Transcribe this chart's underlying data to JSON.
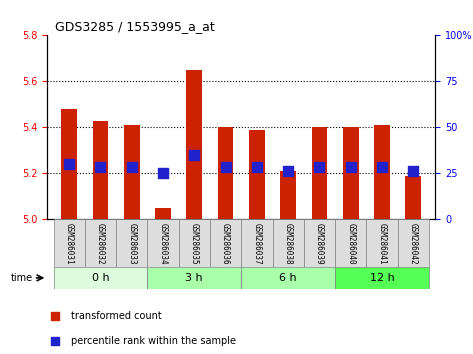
{
  "title": "GDS3285 / 1553995_a_at",
  "samples": [
    "GSM286031",
    "GSM286032",
    "GSM286033",
    "GSM286034",
    "GSM286035",
    "GSM286036",
    "GSM286037",
    "GSM286038",
    "GSM286039",
    "GSM286040",
    "GSM286041",
    "GSM286042"
  ],
  "bar_values": [
    5.48,
    5.43,
    5.41,
    5.05,
    5.65,
    5.4,
    5.39,
    5.21,
    5.4,
    5.4,
    5.41,
    5.19
  ],
  "percentile_values": [
    5.24,
    5.23,
    5.23,
    5.2,
    5.28,
    5.23,
    5.23,
    5.21,
    5.23,
    5.23,
    5.23,
    5.21
  ],
  "bar_color": "#cc2200",
  "dot_color": "#2222cc",
  "ylim_left": [
    5.0,
    5.8
  ],
  "ylim_right": [
    0,
    100
  ],
  "yticks_left": [
    5.0,
    5.2,
    5.4,
    5.6,
    5.8
  ],
  "yticks_right": [
    0,
    25,
    50,
    75,
    100
  ],
  "ytick_right_labels": [
    "0",
    "25",
    "50",
    "75",
    "100%"
  ],
  "bar_width": 0.5,
  "dot_size": 60,
  "time_label": "time",
  "legend_items": [
    {
      "label": "transformed count",
      "color": "#cc2200"
    },
    {
      "label": "percentile rank within the sample",
      "color": "#2222cc"
    }
  ],
  "group_bg_colors": [
    "#ddfcdd",
    "#aaffaa",
    "#aaffaa",
    "#55ff55"
  ],
  "tick_label_bg": "#dddddd",
  "groups": [
    {
      "label": "0 h",
      "start": 0,
      "end": 2
    },
    {
      "label": "3 h",
      "start": 3,
      "end": 5
    },
    {
      "label": "6 h",
      "start": 6,
      "end": 8
    },
    {
      "label": "12 h",
      "start": 9,
      "end": 11
    }
  ],
  "grid_yticks": [
    5.2,
    5.4,
    5.6
  ]
}
